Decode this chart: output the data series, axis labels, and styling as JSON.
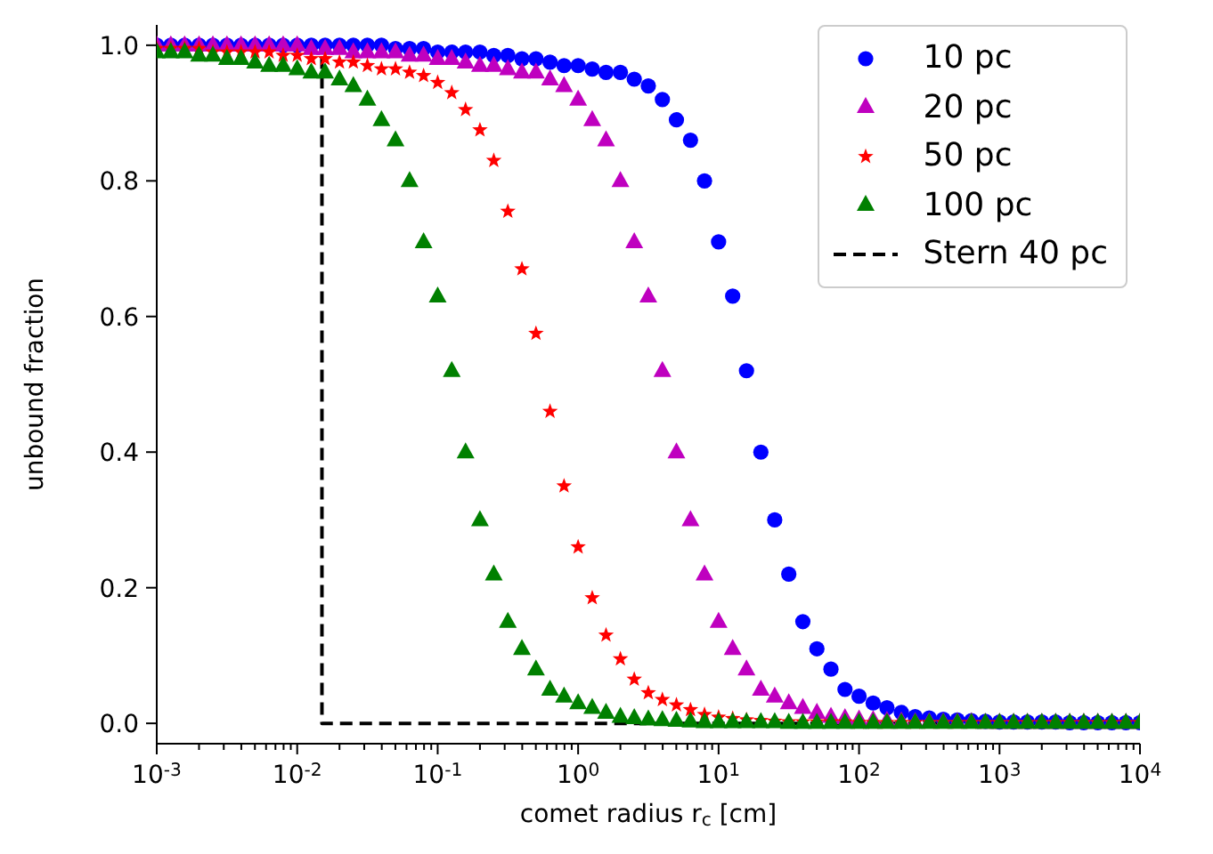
{
  "chart_data": {
    "type": "scatter",
    "xlabel": "comet radius r$_{c}$  [cm]",
    "ylabel": "unbound fraction",
    "log": "x",
    "legend": "top right",
    "xlim": [
      0.001,
      10000
    ],
    "ylim": [
      -0.03,
      1.03
    ],
    "xticks": [
      {
        "value": 0.001,
        "label": "10$^{-3}$"
      },
      {
        "value": 0.002,
        "label": null
      },
      {
        "value": 0.003,
        "label": null
      },
      {
        "value": 0.004,
        "label": null
      },
      {
        "value": 0.005,
        "label": null
      },
      {
        "value": 0.006,
        "label": null
      },
      {
        "value": 0.007,
        "label": null
      },
      {
        "value": 0.008,
        "label": null
      },
      {
        "value": 0.009,
        "label": null
      },
      {
        "value": 0.01,
        "label": "10$^{-2}$"
      },
      {
        "value": 0.02,
        "label": null
      },
      {
        "value": 0.03,
        "label": null
      },
      {
        "value": 0.04,
        "label": null
      },
      {
        "value": 0.05,
        "label": null
      },
      {
        "value": 0.06,
        "label": null
      },
      {
        "value": 0.07,
        "label": null
      },
      {
        "value": 0.08,
        "label": null
      },
      {
        "value": 0.09,
        "label": null
      },
      {
        "value": 0.1,
        "label": "10$^{-1}$"
      },
      {
        "value": 0.2,
        "label": null
      },
      {
        "value": 0.3,
        "label": null
      },
      {
        "value": 0.4,
        "label": null
      },
      {
        "value": 0.5,
        "label": null
      },
      {
        "value": 0.6,
        "label": null
      },
      {
        "value": 0.7,
        "label": null
      },
      {
        "value": 0.8,
        "label": null
      },
      {
        "value": 0.9,
        "label": null
      },
      {
        "value": 1,
        "label": "10$^{0}$"
      },
      {
        "value": 2,
        "label": null
      },
      {
        "value": 3,
        "label": null
      },
      {
        "value": 4,
        "label": null
      },
      {
        "value": 5,
        "label": null
      },
      {
        "value": 6,
        "label": null
      },
      {
        "value": 7,
        "label": null
      },
      {
        "value": 8,
        "label": null
      },
      {
        "value": 9,
        "label": null
      },
      {
        "value": 10,
        "label": "10$^{1}$"
      },
      {
        "value": 20,
        "label": null
      },
      {
        "value": 30,
        "label": null
      },
      {
        "value": 40,
        "label": null
      },
      {
        "value": 50,
        "label": null
      },
      {
        "value": 60,
        "label": null
      },
      {
        "value": 70,
        "label": null
      },
      {
        "value": 80,
        "label": null
      },
      {
        "value": 90,
        "label": null
      },
      {
        "value": 100,
        "label": "10$^{2}$"
      },
      {
        "value": 200,
        "label": null
      },
      {
        "value": 300,
        "label": null
      },
      {
        "value": 400,
        "label": null
      },
      {
        "value": 500,
        "label": null
      },
      {
        "value": 600,
        "label": null
      },
      {
        "value": 700,
        "label": null
      },
      {
        "value": 800,
        "label": null
      },
      {
        "value": 900,
        "label": null
      },
      {
        "value": 1000,
        "label": "10$^{3}$"
      },
      {
        "value": 2000,
        "label": null
      },
      {
        "value": 3000,
        "label": null
      },
      {
        "value": 4000,
        "label": null
      },
      {
        "value": 5000,
        "label": null
      },
      {
        "value": 6000,
        "label": null
      },
      {
        "value": 7000,
        "label": null
      },
      {
        "value": 8000,
        "label": null
      },
      {
        "value": 9000,
        "label": null
      },
      {
        "value": 10000,
        "label": "10$^{4}$"
      }
    ],
    "yticks": [
      {
        "value": 0,
        "label": "0.0"
      },
      {
        "value": 0.2,
        "label": "0.2"
      },
      {
        "value": 0.4,
        "label": "0.4"
      },
      {
        "value": 0.6,
        "label": "0.6"
      },
      {
        "value": 0.8,
        "label": "0.8"
      },
      {
        "value": 1,
        "label": "1.0"
      }
    ],
    "x": [
      0.001,
      0.00126,
      0.00158,
      0.002,
      0.00251,
      0.00316,
      0.00398,
      0.00501,
      0.00631,
      0.00794,
      0.01,
      0.0126,
      0.0158,
      0.02,
      0.0251,
      0.0316,
      0.0398,
      0.0501,
      0.0631,
      0.0794,
      0.1,
      0.126,
      0.158,
      0.2,
      0.251,
      0.316,
      0.398,
      0.501,
      0.631,
      0.794,
      1,
      1.26,
      1.58,
      2,
      2.51,
      3.16,
      3.98,
      5.01,
      6.31,
      7.94,
      10,
      12.6,
      15.8,
      20,
      25.1,
      31.6,
      39.8,
      50.1,
      63.1,
      79.4,
      100,
      126,
      158,
      200,
      251,
      316,
      398,
      501,
      631,
      794,
      1000,
      1260,
      1580,
      2000,
      2510,
      3160,
      3980,
      5010,
      6310,
      7940,
      10000
    ],
    "series": [
      {
        "name": "10 pc",
        "color": "#0000ff",
        "marker": "circle",
        "values": [
          1,
          1,
          1,
          1,
          1,
          1,
          1,
          1,
          1,
          1,
          1,
          1,
          1,
          1,
          1,
          1,
          1,
          0.995,
          0.995,
          0.995,
          0.99,
          0.99,
          0.99,
          0.99,
          0.985,
          0.985,
          0.98,
          0.98,
          0.975,
          0.97,
          0.97,
          0.965,
          0.96,
          0.96,
          0.95,
          0.94,
          0.92,
          0.89,
          0.86,
          0.8,
          0.71,
          0.63,
          0.52,
          0.4,
          0.3,
          0.22,
          0.15,
          0.11,
          0.08,
          0.05,
          0.04,
          0.03,
          0.023,
          0.016,
          0.01,
          0.008,
          0.006,
          0.005,
          0.004,
          0.003,
          0.002,
          0.002,
          0.002,
          0.002,
          0.002,
          0.001,
          0.001,
          0.001,
          0.001,
          0.001,
          0.001
        ]
      },
      {
        "name": "20 pc",
        "color": "#bf00bf",
        "marker": "triangle",
        "values": [
          1,
          1,
          1,
          1,
          1,
          1,
          1,
          1,
          1,
          1,
          1,
          0.995,
          0.995,
          0.995,
          0.99,
          0.99,
          0.99,
          0.99,
          0.985,
          0.985,
          0.98,
          0.98,
          0.975,
          0.97,
          0.97,
          0.965,
          0.96,
          0.96,
          0.95,
          0.94,
          0.92,
          0.89,
          0.86,
          0.8,
          0.71,
          0.63,
          0.52,
          0.4,
          0.3,
          0.22,
          0.15,
          0.11,
          0.08,
          0.05,
          0.04,
          0.03,
          0.023,
          0.016,
          0.01,
          0.008,
          0.006,
          0.005,
          0.004,
          0.003,
          0.002,
          0.002,
          0.002,
          0.002,
          0.002,
          0.001,
          0.001,
          0.001,
          0.001,
          0.001,
          0.001,
          0.001,
          0.001,
          0.001,
          0.001,
          0.001,
          0.001
        ]
      },
      {
        "name": "50 pc",
        "color": "#ff0000",
        "marker": "star",
        "values": [
          0.995,
          0.995,
          0.995,
          0.995,
          0.99,
          0.99,
          0.99,
          0.99,
          0.99,
          0.985,
          0.985,
          0.98,
          0.98,
          0.975,
          0.975,
          0.97,
          0.965,
          0.965,
          0.96,
          0.955,
          0.945,
          0.93,
          0.905,
          0.875,
          0.83,
          0.755,
          0.67,
          0.575,
          0.46,
          0.35,
          0.26,
          0.185,
          0.13,
          0.095,
          0.065,
          0.045,
          0.035,
          0.027,
          0.02,
          0.013,
          0.009,
          0.007,
          0.005,
          0.004,
          0.003,
          0.002,
          0.002,
          0.002,
          0.002,
          0.002,
          0.001,
          0.001,
          0.001,
          0.001,
          0.001,
          0.001,
          0.001,
          0.001,
          0.001,
          0.001,
          0.001,
          0.001,
          0.001,
          0.001,
          0.001,
          0.001,
          0.001,
          0.001,
          0.001,
          0.001,
          0.001
        ]
      },
      {
        "name": "100 pc",
        "color": "#008000",
        "marker": "triangle",
        "values": [
          0.99,
          0.99,
          0.99,
          0.985,
          0.985,
          0.98,
          0.98,
          0.975,
          0.97,
          0.97,
          0.965,
          0.96,
          0.96,
          0.95,
          0.94,
          0.92,
          0.89,
          0.86,
          0.8,
          0.71,
          0.63,
          0.52,
          0.4,
          0.3,
          0.22,
          0.15,
          0.11,
          0.08,
          0.05,
          0.04,
          0.03,
          0.023,
          0.016,
          0.01,
          0.008,
          0.006,
          0.005,
          0.004,
          0.003,
          0.002,
          0.002,
          0.002,
          0.002,
          0.002,
          0.002,
          0.001,
          0.001,
          0.001,
          0.001,
          0.001,
          0.001,
          0.001,
          0.001,
          0.001,
          0.001,
          0.001,
          0.001,
          0.001,
          0.001,
          0.001,
          0.001,
          0.001,
          0.001,
          0.001,
          0.001,
          0.001,
          0.001,
          0.001,
          0.001,
          0.001,
          0.001
        ]
      },
      {
        "name": "Stern 40 pc",
        "type": "line",
        "color": "#000000",
        "line_style": "dashed",
        "marker": "none",
        "x": [
          0.001,
          0.015,
          0.015,
          10000
        ],
        "values": [
          1,
          1,
          0,
          0
        ]
      }
    ]
  }
}
